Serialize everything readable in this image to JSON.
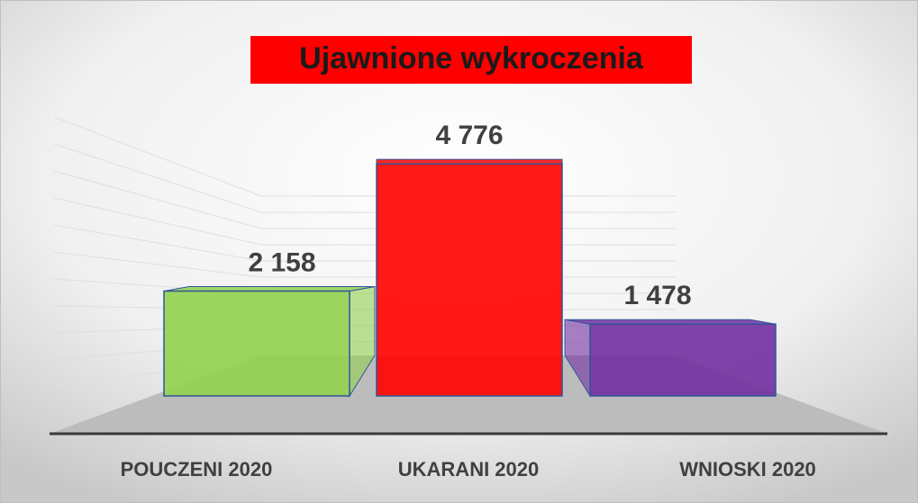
{
  "chart_data": {
    "type": "bar",
    "title": "Ujawnione wykroczenia",
    "categories": [
      "POUCZENI 2020",
      "UKARANI 2020",
      "WNIOSKI 2020"
    ],
    "values": [
      2158,
      4776,
      1478
    ],
    "value_labels": [
      "2 158",
      "4 776",
      "1 478"
    ],
    "colors": [
      "#92d050",
      "#ff0000",
      "#7030a0"
    ],
    "ylim": [
      0,
      5000
    ]
  }
}
